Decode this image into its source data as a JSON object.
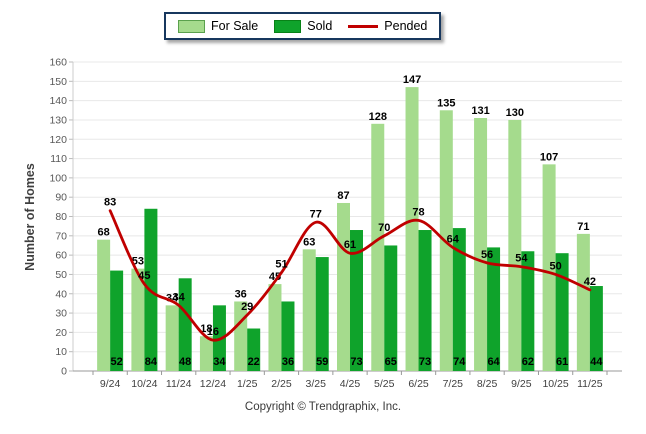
{
  "legend": {
    "items": [
      {
        "label": "For Sale",
        "color": "#A5DB8D",
        "kind": "swatch"
      },
      {
        "label": "Sold",
        "color": "#0FA32B",
        "kind": "swatch"
      },
      {
        "label": "Pended",
        "color": "#C00000",
        "kind": "line"
      }
    ]
  },
  "chart_data": {
    "type": "bar",
    "categories": [
      "9/24",
      "10/24",
      "11/24",
      "12/24",
      "1/25",
      "2/25",
      "3/25",
      "4/25",
      "5/25",
      "6/25",
      "7/25",
      "8/25",
      "9/25",
      "10/25",
      "11/25"
    ],
    "series": [
      {
        "name": "For Sale",
        "type": "bar",
        "color": "#A5DB8D",
        "values": [
          68,
          53,
          34,
          18,
          36,
          45,
          63,
          87,
          128,
          147,
          135,
          131,
          130,
          107,
          71
        ]
      },
      {
        "name": "Sold",
        "type": "bar",
        "color": "#0FA32B",
        "values": [
          52,
          84,
          48,
          34,
          22,
          36,
          59,
          73,
          65,
          73,
          74,
          64,
          62,
          61,
          44
        ]
      },
      {
        "name": "Pended",
        "type": "line",
        "color": "#C00000",
        "values": [
          83,
          45,
          34,
          16,
          29,
          51,
          77,
          61,
          70,
          78,
          64,
          56,
          54,
          50,
          42
        ]
      }
    ],
    "title": "",
    "xlabel": "",
    "ylabel": "Number of Homes",
    "ylim": [
      0,
      160
    ],
    "ytick_step": 10,
    "grid": true,
    "legend_position": "top-center",
    "value_labels": true
  },
  "footer": {
    "copyright": "Copyright © Trendgraphix, Inc."
  }
}
